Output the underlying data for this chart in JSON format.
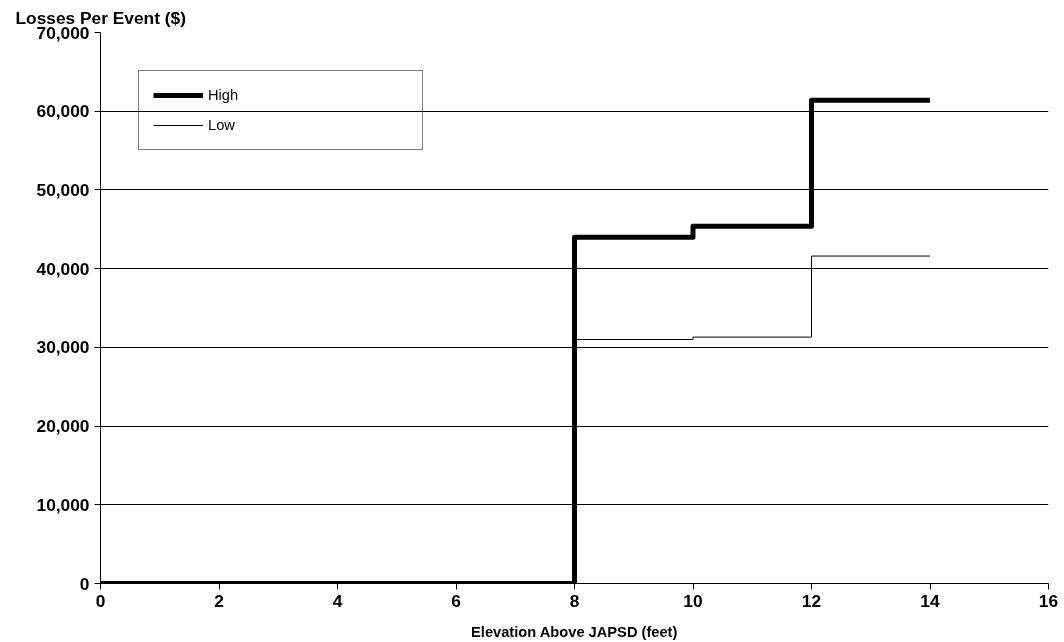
{
  "chart_data": {
    "type": "step",
    "ylabel": "Losses Per Event ($)",
    "xlabel": "Elevation Above JAPSD (feet)",
    "xlim": [
      0,
      16
    ],
    "xticks": [
      0,
      2,
      4,
      6,
      8,
      10,
      12,
      14,
      16
    ],
    "ylim": [
      0,
      70000
    ],
    "yticks": [
      {
        "value": 0,
        "label": "0"
      },
      {
        "value": 10000,
        "label": "10,000"
      },
      {
        "value": 20000,
        "label": "20,000"
      },
      {
        "value": 30000,
        "label": "30,000"
      },
      {
        "value": 40000,
        "label": "40,000"
      },
      {
        "value": 50000,
        "label": "50,000"
      },
      {
        "value": 60000,
        "label": "60,000"
      },
      {
        "value": 70000,
        "label": "70,000"
      }
    ],
    "grid": "y",
    "legend": "top left",
    "series": [
      {
        "name": "High",
        "color": "#000000",
        "x": [
          0,
          8,
          10,
          12,
          14
        ],
        "values": [
          0,
          44000,
          45400,
          61400,
          61400
        ]
      },
      {
        "name": "Low",
        "color": "#000000",
        "x": [
          8,
          10,
          12,
          14
        ],
        "values": [
          31000,
          31300,
          41600,
          41600
        ]
      }
    ]
  }
}
